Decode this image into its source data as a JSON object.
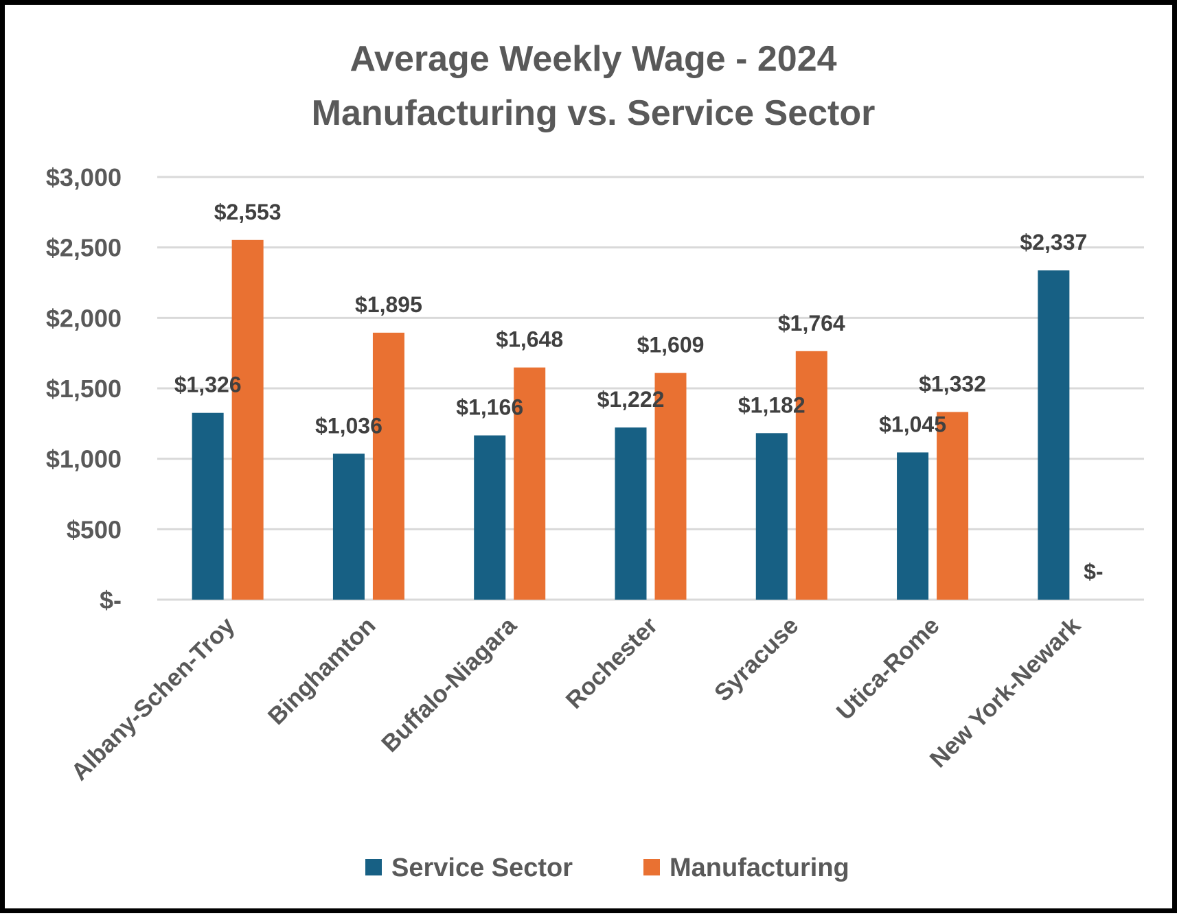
{
  "chart_data": {
    "type": "bar",
    "title": "Average Weekly Wage - 2024",
    "subtitle": "Manufacturing vs. Service Sector",
    "categories": [
      "Albany-Schen-Troy",
      "Binghamton",
      "Buffalo-Niagara",
      "Rochester",
      "Syracuse",
      "Utica-Rome",
      "New York-Newark"
    ],
    "series": [
      {
        "name": "Service Sector",
        "color": "#176084",
        "values": [
          1326,
          1036,
          1166,
          1222,
          1182,
          1045,
          2337
        ],
        "labels": [
          "$1,326",
          "$1,036",
          "$1,166",
          "$1,222",
          "$1,182",
          "$1,045",
          "$2,337"
        ]
      },
      {
        "name": "Manufacturing",
        "color": "#E97132",
        "values": [
          2553,
          1895,
          1648,
          1609,
          1764,
          1332,
          0
        ],
        "labels": [
          "$2,553",
          "$1,895",
          "$1,648",
          "$1,609",
          "$1,764",
          "$1,332",
          "$-"
        ]
      }
    ],
    "ylim": [
      0,
      3000
    ],
    "yticks": [
      0,
      500,
      1000,
      1500,
      2000,
      2500,
      3000
    ],
    "ytick_labels": [
      "$-",
      "$500",
      "$1,000",
      "$1,500",
      "$2,000",
      "$2,500",
      "$3,000"
    ],
    "grid": true,
    "legend": "bottom",
    "xlabel": "",
    "ylabel": ""
  }
}
